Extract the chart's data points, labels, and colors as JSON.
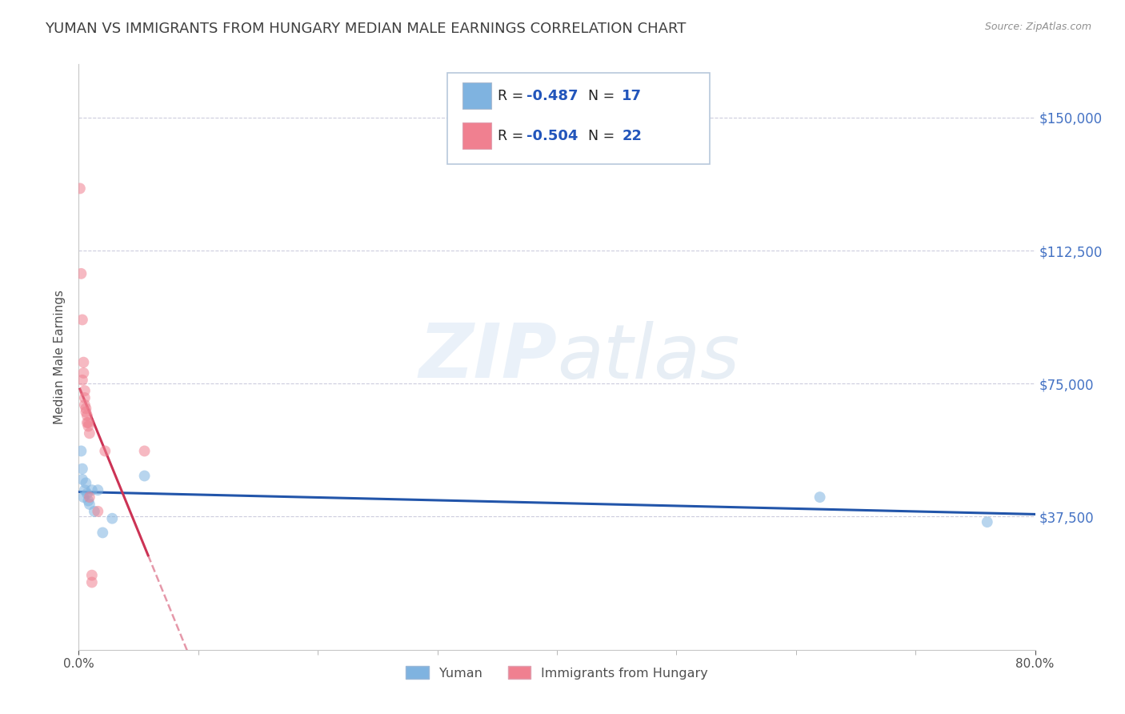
{
  "title": "YUMAN VS IMMIGRANTS FROM HUNGARY MEDIAN MALE EARNINGS CORRELATION CHART",
  "source": "Source: ZipAtlas.com",
  "ylabel": "Median Male Earnings",
  "watermark": "ZIPatlas",
  "legend_entries": [
    {
      "r_val": "-0.487",
      "n_val": "17",
      "color": "#a8c4e0"
    },
    {
      "r_val": "-0.504",
      "n_val": "22",
      "color": "#f4b8c4"
    }
  ],
  "legend_labels_bottom": [
    "Yuman",
    "Immigrants from Hungary"
  ],
  "yuman_x": [
    0.002,
    0.003,
    0.003,
    0.004,
    0.005,
    0.006,
    0.007,
    0.008,
    0.009,
    0.011,
    0.013,
    0.016,
    0.02,
    0.028,
    0.055,
    0.62,
    0.76
  ],
  "yuman_y": [
    56000,
    51000,
    48000,
    43000,
    45000,
    47000,
    44000,
    42000,
    41000,
    45000,
    39000,
    45000,
    33000,
    37000,
    49000,
    43000,
    36000
  ],
  "hungary_x": [
    0.001,
    0.002,
    0.003,
    0.003,
    0.004,
    0.004,
    0.005,
    0.005,
    0.005,
    0.006,
    0.006,
    0.007,
    0.007,
    0.008,
    0.008,
    0.009,
    0.009,
    0.011,
    0.011,
    0.016,
    0.022,
    0.055
  ],
  "hungary_y": [
    130000,
    106000,
    93000,
    76000,
    78000,
    81000,
    73000,
    71000,
    69000,
    68000,
    67000,
    64000,
    66000,
    64000,
    63000,
    61000,
    43000,
    19000,
    21000,
    39000,
    56000,
    56000
  ],
  "yuman_color": "#7fb3e0",
  "hungary_color": "#f08090",
  "yuman_line_color": "#2255aa",
  "hungary_line_color": "#cc3355",
  "background_color": "#ffffff",
  "grid_color": "#ccccdd",
  "title_color": "#404040",
  "source_color": "#909090",
  "ytick_color": "#4472c4",
  "ytick_labels": [
    "$37,500",
    "$75,000",
    "$112,500",
    "$150,000"
  ],
  "ytick_values": [
    37500,
    75000,
    112500,
    150000
  ],
  "xlim": [
    0.0,
    0.8
  ],
  "ylim": [
    0,
    165000
  ],
  "marker_size": 100,
  "marker_alpha": 0.55
}
